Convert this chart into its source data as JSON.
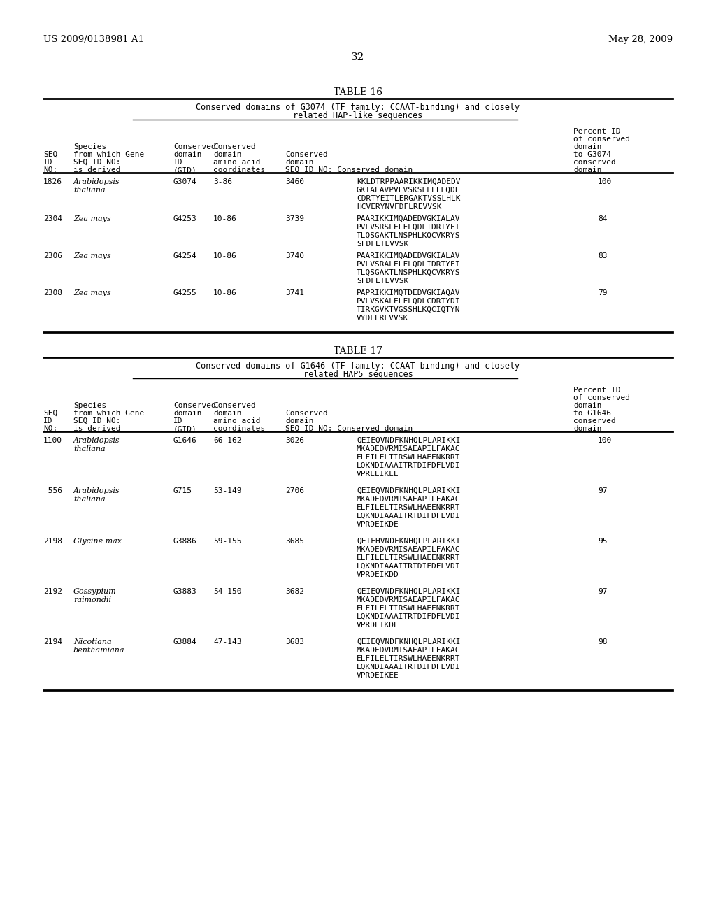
{
  "bg_color": "#ffffff",
  "header_left": "US 2009/0138981 A1",
  "header_right": "May 28, 2009",
  "page_number": "32",
  "table16": {
    "title": "TABLE 16",
    "subtitle1": "Conserved domains of G3074 (TF family: CCAAT-binding) and closely",
    "subtitle2": "related HAP-like sequences",
    "rows": [
      {
        "seq_id": "1826",
        "species_italic": "Arabidopsis",
        "species2": "thaliana",
        "gene_id": "G3074",
        "coords": "3-86",
        "cons_domain_seq": "3460",
        "conserved_domain": "KKLDTRPPAARIKKIMQADEDV\nGKIALAVPVLVSKSLELFLQDL\nCDRTYEITLERGAKTVSSLHLK\nHCVERYNVFDFLREVVSK",
        "percent_id": "100"
      },
      {
        "seq_id": "2304",
        "species_italic": "Zea mays",
        "species2": "",
        "gene_id": "G4253",
        "coords": "10-86",
        "cons_domain_seq": "3739",
        "conserved_domain": "PAARIKKIMQADEDVGKIALAV\nPVLVSRSLELFLQDLIDRTYEI\nTLQSGAKTLNSPHLKQCVKRYS\nSFDFLTEVVSK",
        "percent_id": "84"
      },
      {
        "seq_id": "2306",
        "species_italic": "Zea mays",
        "species2": "",
        "gene_id": "G4254",
        "coords": "10-86",
        "cons_domain_seq": "3740",
        "conserved_domain": "PAARIKKIMQADEDVGKIALAV\nPVLVSRALELFLQDLIDRTYEI\nTLQSGAKTLNSPHLKQCVKRYS\nSFDFLTEVVSK",
        "percent_id": "83"
      },
      {
        "seq_id": "2308",
        "species_italic": "Zea mays",
        "species2": "",
        "gene_id": "G4255",
        "coords": "10-86",
        "cons_domain_seq": "3741",
        "conserved_domain": "PAPRIKKIMQTDEDVGKIAQAV\nPVLVSKALELFLQDLCDRTYDI\nTIRKGVKTVGSSHLKQCIQTYN\nVYDFLREVVSK",
        "percent_id": "79"
      }
    ]
  },
  "table17": {
    "title": "TABLE 17",
    "subtitle1": "Conserved domains of G1646 (TF family: CCAAT-binding) and closely",
    "subtitle2": "related HAP5 sequences",
    "pct_header": "to G1646",
    "rows": [
      {
        "seq_id": "1100",
        "species_italic": "Arabidopsis",
        "species2": "thaliana",
        "gene_id": "G1646",
        "coords": "66-162",
        "cons_domain_seq": "3026",
        "conserved_domain": "QEIEQVNDFKNHQLPLARIKKI\nMKADEDVRMISAEAPILFAKAC\nELFILELTIRSWLHAEENKRRT\nLQKNDIAAAITRTDIFDFLVDI\nVPREEIKEE",
        "percent_id": "100"
      },
      {
        "seq_id": " 556",
        "species_italic": "Arabidopsis",
        "species2": "thaliana",
        "gene_id": "G715",
        "coords": "53-149",
        "cons_domain_seq": "2706",
        "conserved_domain": "QEIEQVNDFKNHQLPLARIKKI\nMKADEDVRMISAEAPILFAKAC\nELFILELTIRSWLHAEENKRRT\nLQKNDIAAAITRTDIFDFLVDI\nVPRDEIKDE",
        "percent_id": "97"
      },
      {
        "seq_id": "2198",
        "species_italic": "Glycine max",
        "species2": "",
        "gene_id": "G3886",
        "coords": "59-155",
        "cons_domain_seq": "3685",
        "conserved_domain": "QEIEHVNDFKNHQLPLARIKKI\nMKADEDVRMISAEAPILFAKAC\nELFILELTIRSWLHAEENKRRT\nLQKNDIAAAITRTDIFDFLVDI\nVPRDEIKDD",
        "percent_id": "95"
      },
      {
        "seq_id": "2192",
        "species_italic": "Gossypium",
        "species2": "raimondii",
        "gene_id": "G3883",
        "coords": "54-150",
        "cons_domain_seq": "3682",
        "conserved_domain": "QEIEQVNDFKNHQLPLARIKKI\nMKADEDVRMISAEAPILFAKAC\nELFILELTIRSWLHAEENKRRT\nLQKNDIAAAITRTDIFDFLVDI\nVPRDEIKDE",
        "percent_id": "97"
      },
      {
        "seq_id": "2194",
        "species_italic": "Nicotiana",
        "species2": "benthamiana",
        "gene_id": "G3884",
        "coords": "47-143",
        "cons_domain_seq": "3683",
        "conserved_domain": "QEIEQVNDFKNHQLPLARIKKI\nMKADEDVRMISAEAPILFAKAC\nELFILELTIRSWLHAEENKRRT\nLQKNDIAAAITRTDIFDFLVDI\nVPRDEIKEE",
        "percent_id": "98"
      }
    ]
  }
}
